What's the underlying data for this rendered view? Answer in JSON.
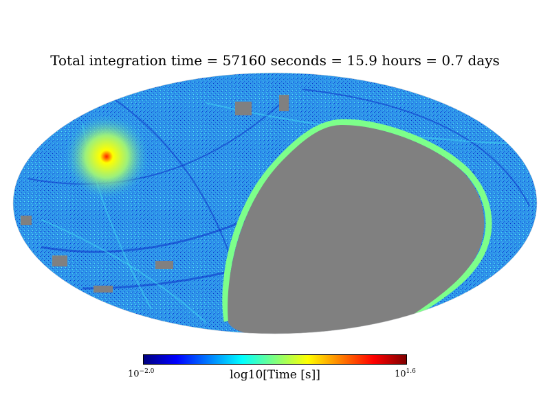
{
  "title": "Total integration time = 57160 seconds = 15.9 hours = 0.7 days",
  "projection": "mollweide",
  "colormap": [
    "#00007f",
    "#0000ff",
    "#007fff",
    "#00ffff",
    "#7fff7f",
    "#ffff00",
    "#ff7f00",
    "#ff0000",
    "#7f0000"
  ],
  "colors": {
    "unobserved": "#808080",
    "sky_base": "#2a8fe8",
    "hotspot": "#ffff00"
  },
  "colorbar": {
    "label": "log10[Time [s]]",
    "min_base": "10",
    "min_exp": "−2.0",
    "max_base": "10",
    "max_exp": "1.6"
  }
}
